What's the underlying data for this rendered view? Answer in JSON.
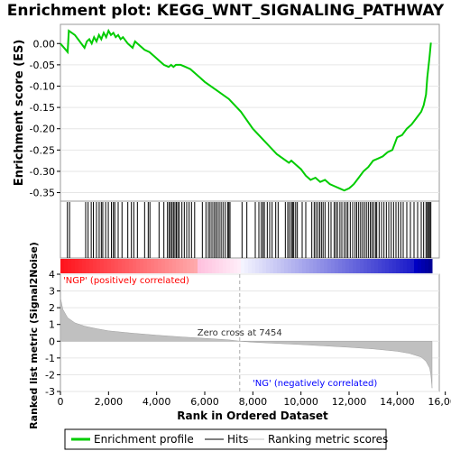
{
  "chart_data": {
    "type": "line",
    "title": "Enrichment plot: KEGG_WNT_SIGNALING_PATHWAY",
    "panels": {
      "enrichment": {
        "ylabel": "Enrichment score (ES)",
        "ylim": [
          -0.37,
          0.045
        ],
        "yticks": [
          0.0,
          -0.05,
          -0.1,
          -0.15,
          -0.2,
          -0.25,
          -0.3,
          -0.35
        ],
        "ytick_labels": [
          "0.00",
          "-0.05",
          "-0.10",
          "-0.15",
          "-0.20",
          "-0.25",
          "-0.30",
          "-0.35"
        ],
        "series": [
          {
            "name": "Enrichment profile",
            "color": "#00cc00",
            "x": [
              0,
              300,
              350,
              600,
              1000,
              1100,
              1200,
              1300,
              1400,
              1500,
              1600,
              1700,
              1800,
              1900,
              2000,
              2100,
              2200,
              2300,
              2400,
              2500,
              2600,
              2800,
              3000,
              3100,
              3300,
              3500,
              3700,
              3900,
              4100,
              4300,
              4500,
              4600,
              4700,
              4800,
              4900,
              5000,
              5200,
              5400,
              5600,
              5800,
              6000,
              6500,
              7000,
              7500,
              8000,
              8500,
              9000,
              9500,
              9600,
              9800,
              10000,
              10200,
              10400,
              10600,
              10800,
              11000,
              11200,
              11400,
              11600,
              11800,
              12000,
              12100,
              12200,
              12400,
              12600,
              12800,
              13000,
              13200,
              13400,
              13600,
              13800,
              14000,
              14200,
              14400,
              14600,
              14800,
              15000,
              15100,
              15200,
              15250,
              15300,
              15350,
              15400
            ],
            "y": [
              0.0,
              -0.02,
              0.03,
              0.02,
              -0.01,
              0.005,
              0.01,
              0.0,
              0.015,
              0.005,
              0.02,
              0.01,
              0.025,
              0.015,
              0.03,
              0.02,
              0.025,
              0.015,
              0.02,
              0.01,
              0.015,
              0.0,
              -0.01,
              0.005,
              -0.005,
              -0.015,
              -0.02,
              -0.03,
              -0.04,
              -0.05,
              -0.055,
              -0.05,
              -0.055,
              -0.05,
              -0.05,
              -0.05,
              -0.055,
              -0.06,
              -0.07,
              -0.08,
              -0.09,
              -0.11,
              -0.13,
              -0.16,
              -0.2,
              -0.23,
              -0.26,
              -0.28,
              -0.275,
              -0.285,
              -0.295,
              -0.31,
              -0.32,
              -0.315,
              -0.325,
              -0.32,
              -0.33,
              -0.335,
              -0.34,
              -0.345,
              -0.34,
              -0.335,
              -0.33,
              -0.315,
              -0.3,
              -0.29,
              -0.275,
              -0.27,
              -0.265,
              -0.255,
              -0.25,
              -0.22,
              -0.215,
              -0.2,
              -0.19,
              -0.175,
              -0.16,
              -0.145,
              -0.12,
              -0.08,
              -0.055,
              -0.03,
              0.002
            ]
          }
        ]
      },
      "hits": {
        "name": "Hits",
        "positions": [
          290,
          380,
          1050,
          1150,
          1280,
          1370,
          1500,
          1610,
          1700,
          1760,
          1880,
          1990,
          2120,
          2200,
          2260,
          2400,
          2560,
          2800,
          2950,
          3050,
          3200,
          3500,
          3650,
          3720,
          4100,
          4300,
          4450,
          4520,
          4580,
          4640,
          4700,
          4760,
          4820,
          4880,
          4940,
          5050,
          5150,
          5250,
          5350,
          5450,
          5580,
          5900,
          6050,
          6150,
          6220,
          6300,
          6380,
          6450,
          6520,
          6600,
          6680,
          6760,
          6850,
          6950,
          7000,
          7050,
          7550,
          7750,
          8100,
          8250,
          8350,
          8420,
          8480,
          8600,
          8700,
          8800,
          8950,
          9050,
          9350,
          9450,
          9520,
          9600,
          9650,
          9700,
          9780,
          9850,
          10050,
          10200,
          10450,
          10550,
          10620,
          10700,
          10780,
          10850,
          10920,
          11000,
          11150,
          11250,
          11380,
          11450,
          11520,
          11620,
          11700,
          11800,
          11880,
          11950,
          12050,
          12150,
          12250,
          12320,
          12400,
          12480,
          12560,
          12640,
          12720,
          12800,
          12880,
          12950,
          13020,
          13100,
          13150,
          13250,
          13350,
          13450,
          13550,
          13650,
          13750,
          13850,
          13950,
          14050,
          14150,
          14250,
          14400,
          14550,
          14700,
          14850,
          15000,
          15100,
          15200,
          15260,
          15300,
          15350,
          15400
        ]
      },
      "ranked_metric": {
        "ylabel": "Ranked list metric (Signal2Noise)",
        "ylim": [
          -3,
          4
        ],
        "yticks": [
          4,
          3,
          2,
          1,
          0,
          -1,
          -2,
          -3
        ],
        "ytick_labels": [
          "4",
          "3",
          "2",
          "1",
          "0",
          "-1",
          "-2",
          "-3"
        ],
        "x": [
          0,
          100,
          300,
          600,
          1000,
          1500,
          2000,
          3000,
          4000,
          5000,
          6000,
          7000,
          7454,
          8000,
          9000,
          10000,
          11000,
          12000,
          13000,
          14000,
          14500,
          15000,
          15200,
          15350,
          15400,
          15450
        ],
        "y": [
          2.6,
          1.9,
          1.4,
          1.1,
          0.9,
          0.75,
          0.62,
          0.48,
          0.36,
          0.26,
          0.17,
          0.08,
          0.0,
          -0.06,
          -0.13,
          -0.2,
          -0.28,
          -0.36,
          -0.46,
          -0.6,
          -0.72,
          -0.95,
          -1.2,
          -1.6,
          -2.0,
          -2.8
        ],
        "fill_color": "#c0c0c0"
      }
    },
    "x_axis": {
      "label": "Rank in Ordered Dataset",
      "xlim": [
        0,
        15750
      ],
      "ticks": [
        0,
        2000,
        4000,
        6000,
        8000,
        10000,
        12000,
        14000,
        16000
      ],
      "tick_labels": [
        "0",
        "2,000",
        "4,000",
        "6,000",
        "8,000",
        "10,000",
        "12,000",
        "14,000",
        "16,000"
      ]
    },
    "annotations": {
      "positive": "'NGP' (positively correlated)",
      "negative": "'NG' (negatively correlated)",
      "zero_cross": "Zero cross at 7454",
      "zero_cross_x": 7454,
      "positive_color": "#ff0000",
      "negative_color": "#0000ff"
    },
    "legend": {
      "placement": "bottom",
      "entries": [
        "Enrichment profile",
        "Hits",
        "Ranking metric scores"
      ]
    }
  }
}
